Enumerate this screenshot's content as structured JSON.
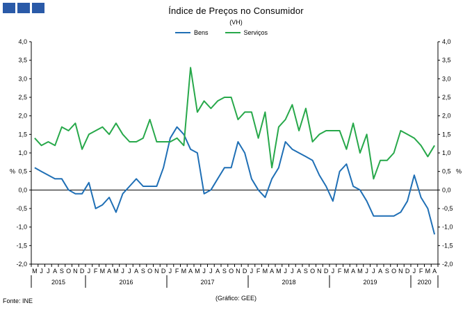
{
  "logo": {
    "blocks": 3,
    "color": "#2a5aa8"
  },
  "title": "Índice de Preços no Consumidor",
  "subtitle": "(VH)",
  "source": "Fonte: INE",
  "credit": "(Gráfico: GEE)",
  "chart_data": {
    "type": "line",
    "title": "Índice de Preços no Consumidor",
    "subtitle": "(VH)",
    "ylabel_left": "%",
    "ylabel_right": "%",
    "ylim": [
      -2.0,
      4.0
    ],
    "y_ticks": [
      "4,0",
      "3,5",
      "3,0",
      "2,5",
      "2,0",
      "1,5",
      "1,0",
      "0,5",
      "0,0",
      "-0,5",
      "-1,0",
      "-1,5",
      "-2,0"
    ],
    "y_tick_values": [
      4.0,
      3.5,
      3.0,
      2.5,
      2.0,
      1.5,
      1.0,
      0.5,
      0.0,
      -0.5,
      -1.0,
      -1.5,
      -2.0
    ],
    "legend_position": "top",
    "grid": false,
    "months": [
      "M",
      "J",
      "J",
      "A",
      "S",
      "O",
      "N",
      "D",
      "J",
      "F",
      "M",
      "A",
      "M",
      "J",
      "J",
      "A",
      "S",
      "O",
      "N",
      "D",
      "J",
      "F",
      "M",
      "A",
      "M",
      "J",
      "J",
      "A",
      "S",
      "O",
      "N",
      "D",
      "J",
      "F",
      "M",
      "A",
      "M",
      "J",
      "J",
      "A",
      "S",
      "O",
      "N",
      "D",
      "J",
      "F",
      "M",
      "A",
      "M",
      "J",
      "J",
      "A",
      "S",
      "O",
      "N",
      "D",
      "J",
      "F",
      "M",
      "A"
    ],
    "years": [
      {
        "label": "2015",
        "start": 0,
        "count": 8
      },
      {
        "label": "2016",
        "start": 8,
        "count": 12
      },
      {
        "label": "2017",
        "start": 20,
        "count": 12
      },
      {
        "label": "2018",
        "start": 32,
        "count": 12
      },
      {
        "label": "2019",
        "start": 44,
        "count": 12
      },
      {
        "label": "2020",
        "start": 56,
        "count": 4
      }
    ],
    "series": [
      {
        "name": "Bens",
        "color": "#1f6fb5",
        "values": [
          0.6,
          0.5,
          0.4,
          0.3,
          0.3,
          0.0,
          -0.1,
          -0.1,
          0.2,
          -0.5,
          -0.4,
          -0.2,
          -0.6,
          -0.1,
          0.1,
          0.3,
          0.1,
          0.1,
          0.1,
          0.6,
          1.4,
          1.7,
          1.5,
          1.1,
          1.0,
          -0.1,
          0.0,
          0.3,
          0.6,
          0.6,
          1.3,
          1.0,
          0.3,
          0.0,
          -0.2,
          0.3,
          0.6,
          1.3,
          1.1,
          1.0,
          0.9,
          0.8,
          0.4,
          0.1,
          -0.3,
          0.5,
          0.7,
          0.1,
          0.0,
          -0.3,
          -0.7,
          -0.7,
          -0.7,
          -0.7,
          -0.6,
          -0.3,
          0.4,
          -0.2,
          -0.5,
          -1.2
        ]
      },
      {
        "name": "Serviços",
        "color": "#27a84a",
        "values": [
          1.4,
          1.2,
          1.3,
          1.2,
          1.7,
          1.6,
          1.8,
          1.1,
          1.5,
          1.6,
          1.7,
          1.5,
          1.8,
          1.5,
          1.3,
          1.3,
          1.4,
          1.9,
          1.3,
          1.3,
          1.3,
          1.4,
          1.2,
          3.3,
          2.1,
          2.4,
          2.2,
          2.4,
          2.5,
          2.5,
          1.9,
          2.1,
          2.1,
          1.4,
          2.1,
          0.6,
          1.7,
          1.9,
          2.3,
          1.6,
          2.2,
          1.3,
          1.5,
          1.6,
          1.6,
          1.6,
          1.1,
          1.8,
          1.0,
          1.5,
          0.3,
          0.8,
          0.8,
          1.0,
          1.6,
          1.5,
          1.4,
          1.2,
          0.9,
          1.2
        ]
      }
    ]
  }
}
